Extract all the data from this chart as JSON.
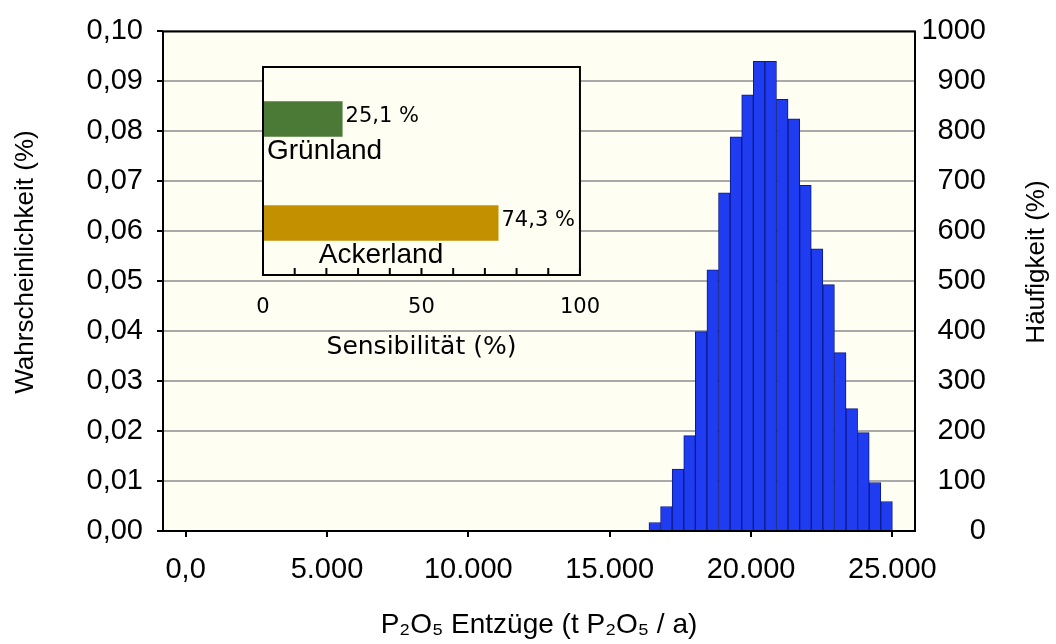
{
  "chart_data": [
    {
      "type": "histogram",
      "xlabel": "P₂O₅ Entzüge (t P₂O₅ / a)",
      "ylabel": "Wahrscheinlichkeit (%)",
      "y2label": "Häufigkeit (%)",
      "bins": [
        16390,
        16800,
        17210,
        17620,
        18030,
        18440,
        18850,
        19260,
        19670,
        20080,
        20490,
        20900,
        21310,
        21720,
        22130,
        22540,
        22950,
        23360,
        23770,
        24180,
        24590,
        25000
      ],
      "values": [
        0.0017,
        0.0049,
        0.0124,
        0.0191,
        0.0399,
        0.0523,
        0.0677,
        0.0789,
        0.0873,
        0.094,
        0.094,
        0.0864,
        0.0825,
        0.0692,
        0.0565,
        0.0493,
        0.0357,
        0.0245,
        0.0197,
        0.0097,
        0.0059
      ],
      "color": "#1f3cf0",
      "xlim": [
        -800,
        25800
      ],
      "xticks": [
        {
          "value": 0,
          "label": "0,0"
        },
        {
          "value": 5000,
          "label": "5.000"
        },
        {
          "value": 10000,
          "label": "10.000"
        },
        {
          "value": 15000,
          "label": "15.000"
        },
        {
          "value": 20000,
          "label": "20.000"
        },
        {
          "value": 25000,
          "label": "25.000"
        }
      ],
      "ylim": [
        0,
        0.1
      ],
      "yticks": [
        {
          "value": 0,
          "label": "0,00"
        },
        {
          "value": 0.01,
          "label": "0,01"
        },
        {
          "value": 0.02,
          "label": "0,02"
        },
        {
          "value": 0.03,
          "label": "0,03"
        },
        {
          "value": 0.04,
          "label": "0,04"
        },
        {
          "value": 0.05,
          "label": "0,05"
        },
        {
          "value": 0.06,
          "label": "0,06"
        },
        {
          "value": 0.07,
          "label": "0,07"
        },
        {
          "value": 0.08,
          "label": "0,08"
        },
        {
          "value": 0.09,
          "label": "0,09"
        },
        {
          "value": 0.1,
          "label": "0,10"
        }
      ],
      "y2lim": [
        0,
        1000
      ],
      "y2ticks": [
        0,
        100,
        200,
        300,
        400,
        500,
        600,
        700,
        800,
        900,
        1000
      ],
      "grid": "y"
    },
    {
      "type": "bar",
      "orientation": "horizontal",
      "xlabel": "Sensibilität (%)",
      "categories": [
        "Grünland",
        "Ackerland"
      ],
      "values": [
        25.1,
        74.3
      ],
      "colors": [
        "#4a7a35",
        "#c39000"
      ],
      "value_labels": [
        "25,1 %",
        "74,3 %"
      ],
      "xlim": [
        0,
        100
      ],
      "xticks": [
        0,
        {
          "value": 10,
          "label": null
        },
        {
          "value": 20,
          "label": null
        },
        {
          "value": 30,
          "label": null
        },
        {
          "value": 40,
          "label": null
        },
        50,
        {
          "value": 60,
          "label": null
        },
        {
          "value": 70,
          "label": null
        },
        {
          "value": 80,
          "label": null
        },
        {
          "value": 90,
          "label": null
        },
        100
      ]
    }
  ]
}
